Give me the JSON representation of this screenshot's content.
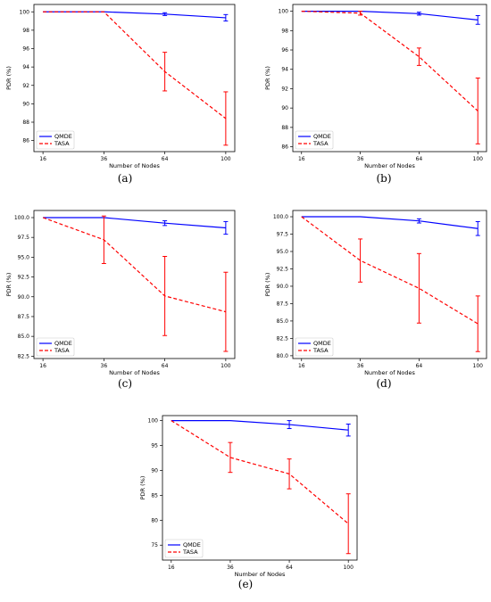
{
  "chart_data": [
    {
      "type": "line",
      "caption": "(a)",
      "xlabel": "Number of Nodes",
      "ylabel": "PDR (%)",
      "categories": [
        "16",
        "36",
        "64",
        "100"
      ],
      "ylim": [
        84.8,
        100.8
      ],
      "yticks": [
        86,
        88,
        90,
        92,
        94,
        96,
        98,
        100
      ],
      "ytick_labels": [
        "86",
        "88",
        "90",
        "92",
        "94",
        "96",
        "98",
        "100"
      ],
      "legend_position": "lower-left",
      "series": [
        {
          "name": "QMDE",
          "color": "#0000ff",
          "dash": "solid",
          "values": [
            100,
            100,
            99.75,
            99.35
          ],
          "err": [
            0,
            0,
            0.15,
            0.35
          ]
        },
        {
          "name": "TASA",
          "color": "#ff0000",
          "dash": "dashed",
          "values": [
            100,
            100,
            93.5,
            88.4
          ],
          "err": [
            0,
            0,
            2.1,
            2.9
          ]
        }
      ]
    },
    {
      "type": "line",
      "caption": "(b)",
      "xlabel": "Number of Nodes",
      "ylabel": "PDR (%)",
      "categories": [
        "16",
        "36",
        "64",
        "100"
      ],
      "ylim": [
        85.5,
        100.7
      ],
      "yticks": [
        86,
        88,
        90,
        92,
        94,
        96,
        98,
        100
      ],
      "ytick_labels": [
        "86",
        "88",
        "90",
        "92",
        "94",
        "96",
        "98",
        "100"
      ],
      "legend_position": "lower-left",
      "series": [
        {
          "name": "QMDE",
          "color": "#0000ff",
          "dash": "solid",
          "values": [
            100,
            100,
            99.75,
            99.1
          ],
          "err": [
            0,
            0,
            0.15,
            0.45
          ]
        },
        {
          "name": "TASA",
          "color": "#ff0000",
          "dash": "dashed",
          "values": [
            100,
            99.8,
            95.3,
            89.7
          ],
          "err": [
            0,
            0.2,
            0.9,
            3.4
          ]
        }
      ]
    },
    {
      "type": "line",
      "caption": "(c)",
      "xlabel": "Number of Nodes",
      "ylabel": "PDR (%)",
      "categories": [
        "16",
        "36",
        "64",
        "100"
      ],
      "ylim": [
        82.2,
        100.9
      ],
      "yticks": [
        82.5,
        85.0,
        87.5,
        90.0,
        92.5,
        95.0,
        97.5,
        100.0
      ],
      "ytick_labels": [
        "82.5",
        "85.0",
        "87.5",
        "90.0",
        "92.5",
        "95.0",
        "97.5",
        "100.0"
      ],
      "legend_position": "lower-left",
      "series": [
        {
          "name": "QMDE",
          "color": "#0000ff",
          "dash": "solid",
          "values": [
            100,
            100,
            99.3,
            98.7
          ],
          "err": [
            0,
            0,
            0.3,
            0.8
          ]
        },
        {
          "name": "TASA",
          "color": "#ff0000",
          "dash": "dashed",
          "values": [
            100,
            97.2,
            90.1,
            88.1
          ],
          "err": [
            0,
            3.0,
            5.0,
            5.0
          ]
        }
      ]
    },
    {
      "type": "line",
      "caption": "(d)",
      "xlabel": "Number of Nodes",
      "ylabel": "PDR (%)",
      "categories": [
        "16",
        "36",
        "64",
        "100"
      ],
      "ylim": [
        79.6,
        100.9
      ],
      "yticks": [
        80.0,
        82.5,
        85.0,
        87.5,
        90.0,
        92.5,
        95.0,
        97.5,
        100.0
      ],
      "ytick_labels": [
        "80.0",
        "82.5",
        "85.0",
        "87.5",
        "90.0",
        "92.5",
        "95.0",
        "97.5",
        "100.0"
      ],
      "legend_position": "lower-left",
      "series": [
        {
          "name": "QMDE",
          "color": "#0000ff",
          "dash": "solid",
          "values": [
            100,
            100,
            99.4,
            98.3
          ],
          "err": [
            0,
            0,
            0.3,
            1.0
          ]
        },
        {
          "name": "TASA",
          "color": "#ff0000",
          "dash": "dashed",
          "values": [
            100,
            93.7,
            89.7,
            84.6
          ],
          "err": [
            0,
            3.1,
            5.0,
            4.0
          ]
        }
      ]
    },
    {
      "type": "line",
      "caption": "(e)",
      "xlabel": "Number of Nodes",
      "ylabel": "PDR (%)",
      "categories": [
        "16",
        "36",
        "64",
        "100"
      ],
      "ylim": [
        72,
        101
      ],
      "yticks": [
        75,
        80,
        85,
        90,
        95,
        100
      ],
      "ytick_labels": [
        "75",
        "80",
        "85",
        "90",
        "95",
        "100"
      ],
      "legend_position": "lower-left",
      "series": [
        {
          "name": "QMDE",
          "color": "#0000ff",
          "dash": "solid",
          "values": [
            100,
            100,
            99.2,
            98.1
          ],
          "err": [
            0,
            0,
            0.8,
            1.2
          ]
        },
        {
          "name": "TASA",
          "color": "#ff0000",
          "dash": "dashed",
          "values": [
            100,
            92.6,
            89.3,
            79.3
          ],
          "err": [
            0,
            3.0,
            3.0,
            6.0
          ]
        }
      ]
    }
  ]
}
